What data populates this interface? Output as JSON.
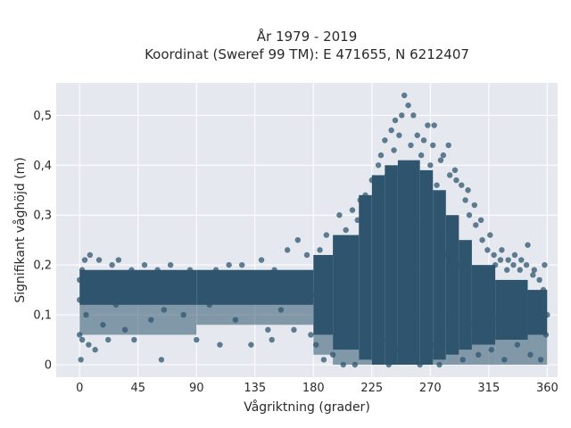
{
  "chart_data": {
    "type": "scatter",
    "title_line1": "År 1979 - 2019",
    "title_line2": "Koordinat (Sweref 99 TM): E 471655, N 6212407",
    "xlabel": "Vågriktning (grader)",
    "ylabel": "Signifikant våghöjd (m)",
    "xlim": [
      -18,
      368
    ],
    "ylim": [
      -0.025,
      0.565
    ],
    "xticks": [
      0,
      45,
      90,
      135,
      180,
      225,
      270,
      315,
      360
    ],
    "xtick_labels": [
      "0",
      "45",
      "90",
      "135",
      "180",
      "225",
      "270",
      "315",
      "360"
    ],
    "yticks": [
      0,
      0.1,
      0.2,
      0.3,
      0.4,
      0.5
    ],
    "ytick_labels": [
      "0",
      "0,1",
      "0,2",
      "0,3",
      "0,4",
      "0,5"
    ],
    "grid": true,
    "marker_color": "#2f556e",
    "plot_bg": "#e5e8ef",
    "points": [
      [
        0,
        0.13
      ],
      [
        0,
        0.06
      ],
      [
        0,
        0.17
      ],
      [
        1,
        0.01
      ],
      [
        2,
        0.19
      ],
      [
        2,
        0.05
      ],
      [
        4,
        0.21
      ],
      [
        5,
        0.1
      ],
      [
        7,
        0.04
      ],
      [
        8,
        0.22
      ],
      [
        10,
        0.16
      ],
      [
        12,
        0.03
      ],
      [
        15,
        0.21
      ],
      [
        18,
        0.08
      ],
      [
        20,
        0.18
      ],
      [
        22,
        0.05
      ],
      [
        25,
        0.2
      ],
      [
        28,
        0.12
      ],
      [
        30,
        0.21
      ],
      [
        35,
        0.07
      ],
      [
        40,
        0.19
      ],
      [
        42,
        0.05
      ],
      [
        45,
        0.14
      ],
      [
        50,
        0.2
      ],
      [
        55,
        0.09
      ],
      [
        60,
        0.19
      ],
      [
        63,
        0.01
      ],
      [
        65,
        0.11
      ],
      [
        70,
        0.2
      ],
      [
        75,
        0.15
      ],
      [
        80,
        0.1
      ],
      [
        85,
        0.19
      ],
      [
        90,
        0.05
      ],
      [
        95,
        0.17
      ],
      [
        100,
        0.12
      ],
      [
        105,
        0.19
      ],
      [
        108,
        0.04
      ],
      [
        110,
        0.15
      ],
      [
        115,
        0.2
      ],
      [
        120,
        0.09
      ],
      [
        125,
        0.2
      ],
      [
        130,
        0.14
      ],
      [
        132,
        0.04
      ],
      [
        135,
        0.16
      ],
      [
        140,
        0.21
      ],
      [
        145,
        0.07
      ],
      [
        148,
        0.05
      ],
      [
        150,
        0.19
      ],
      [
        155,
        0.11
      ],
      [
        160,
        0.23
      ],
      [
        165,
        0.07
      ],
      [
        168,
        0.25
      ],
      [
        170,
        0.15
      ],
      [
        175,
        0.22
      ],
      [
        178,
        0.06
      ],
      [
        180,
        0.14
      ],
      [
        182,
        0.04
      ],
      [
        185,
        0.23
      ],
      [
        188,
        0.01
      ],
      [
        190,
        0.26
      ],
      [
        192,
        0.1
      ],
      [
        195,
        0.02
      ],
      [
        198,
        0.24
      ],
      [
        200,
        0.3
      ],
      [
        203,
        0.0
      ],
      [
        205,
        0.27
      ],
      [
        207,
        0.14
      ],
      [
        210,
        0.31
      ],
      [
        212,
        0.0
      ],
      [
        214,
        0.29
      ],
      [
        216,
        0.33
      ],
      [
        218,
        0.02
      ],
      [
        220,
        0.34
      ],
      [
        222,
        0.18
      ],
      [
        225,
        0.37
      ],
      [
        227,
        0.01
      ],
      [
        230,
        0.4
      ],
      [
        232,
        0.42
      ],
      [
        233,
        0.05
      ],
      [
        235,
        0.45
      ],
      [
        237,
        0.38
      ],
      [
        238,
        0.0
      ],
      [
        240,
        0.47
      ],
      [
        242,
        0.43
      ],
      [
        243,
        0.49
      ],
      [
        245,
        0.03
      ],
      [
        246,
        0.46
      ],
      [
        248,
        0.5
      ],
      [
        249,
        0.2
      ],
      [
        250,
        0.54
      ],
      [
        251,
        0.38
      ],
      [
        253,
        0.52
      ],
      [
        254,
        0.01
      ],
      [
        255,
        0.44
      ],
      [
        257,
        0.5
      ],
      [
        258,
        0.29
      ],
      [
        260,
        0.46
      ],
      [
        262,
        0.0
      ],
      [
        263,
        0.42
      ],
      [
        265,
        0.45
      ],
      [
        266,
        0.15
      ],
      [
        268,
        0.48
      ],
      [
        270,
        0.4
      ],
      [
        271,
        0.04
      ],
      [
        272,
        0.44
      ],
      [
        273,
        0.48
      ],
      [
        275,
        0.36
      ],
      [
        277,
        0.0
      ],
      [
        278,
        0.41
      ],
      [
        280,
        0.42
      ],
      [
        282,
        0.22
      ],
      [
        284,
        0.44
      ],
      [
        285,
        0.38
      ],
      [
        287,
        0.03
      ],
      [
        289,
        0.39
      ],
      [
        290,
        0.37
      ],
      [
        292,
        0.2
      ],
      [
        294,
        0.36
      ],
      [
        295,
        0.01
      ],
      [
        297,
        0.33
      ],
      [
        299,
        0.35
      ],
      [
        300,
        0.3
      ],
      [
        302,
        0.08
      ],
      [
        304,
        0.32
      ],
      [
        305,
        0.28
      ],
      [
        307,
        0.02
      ],
      [
        309,
        0.29
      ],
      [
        310,
        0.25
      ],
      [
        312,
        0.15
      ],
      [
        314,
        0.23
      ],
      [
        316,
        0.26
      ],
      [
        317,
        0.03
      ],
      [
        319,
        0.22
      ],
      [
        320,
        0.2
      ],
      [
        322,
        0.09
      ],
      [
        324,
        0.21
      ],
      [
        325,
        0.23
      ],
      [
        327,
        0.01
      ],
      [
        329,
        0.19
      ],
      [
        330,
        0.21
      ],
      [
        332,
        0.12
      ],
      [
        334,
        0.2
      ],
      [
        335,
        0.22
      ],
      [
        337,
        0.04
      ],
      [
        339,
        0.19
      ],
      [
        340,
        0.21
      ],
      [
        342,
        0.08
      ],
      [
        344,
        0.2
      ],
      [
        345,
        0.24
      ],
      [
        347,
        0.02
      ],
      [
        349,
        0.18
      ],
      [
        350,
        0.19
      ],
      [
        352,
        0.07
      ],
      [
        354,
        0.17
      ],
      [
        355,
        0.01
      ],
      [
        357,
        0.15
      ],
      [
        358,
        0.2
      ],
      [
        359,
        0.06
      ],
      [
        360,
        0.1
      ]
    ],
    "bands": [
      {
        "x": [
          0,
          90
        ],
        "y": [
          0.12,
          0.19
        ],
        "bottom": 0.06
      },
      {
        "x": [
          90,
          180
        ],
        "y": [
          0.12,
          0.19
        ],
        "bottom": 0.08
      },
      {
        "x": [
          180,
          195
        ],
        "y": [
          0.06,
          0.22
        ],
        "bottom": 0.02
      },
      {
        "x": [
          195,
          215
        ],
        "y": [
          0.03,
          0.26
        ],
        "bottom": 0.0
      },
      {
        "x": [
          215,
          225
        ],
        "y": [
          0.01,
          0.34
        ],
        "bottom": 0.0
      },
      {
        "x": [
          225,
          235
        ],
        "y": [
          0.0,
          0.38
        ],
        "bottom": 0.0
      },
      {
        "x": [
          235,
          245
        ],
        "y": [
          0.0,
          0.4
        ],
        "bottom": 0.0
      },
      {
        "x": [
          245,
          262
        ],
        "y": [
          0.0,
          0.41
        ],
        "bottom": 0.0
      },
      {
        "x": [
          262,
          272
        ],
        "y": [
          0.0,
          0.39
        ],
        "bottom": 0.0
      },
      {
        "x": [
          272,
          282
        ],
        "y": [
          0.01,
          0.35
        ],
        "bottom": 0.0
      },
      {
        "x": [
          282,
          292
        ],
        "y": [
          0.02,
          0.3
        ],
        "bottom": 0.0
      },
      {
        "x": [
          292,
          302
        ],
        "y": [
          0.03,
          0.25
        ],
        "bottom": 0.0
      },
      {
        "x": [
          302,
          320
        ],
        "y": [
          0.04,
          0.2
        ],
        "bottom": 0.0
      },
      {
        "x": [
          320,
          345
        ],
        "y": [
          0.05,
          0.17
        ],
        "bottom": 0.0
      },
      {
        "x": [
          345,
          360
        ],
        "y": [
          0.06,
          0.15
        ],
        "bottom": 0.0
      }
    ]
  }
}
